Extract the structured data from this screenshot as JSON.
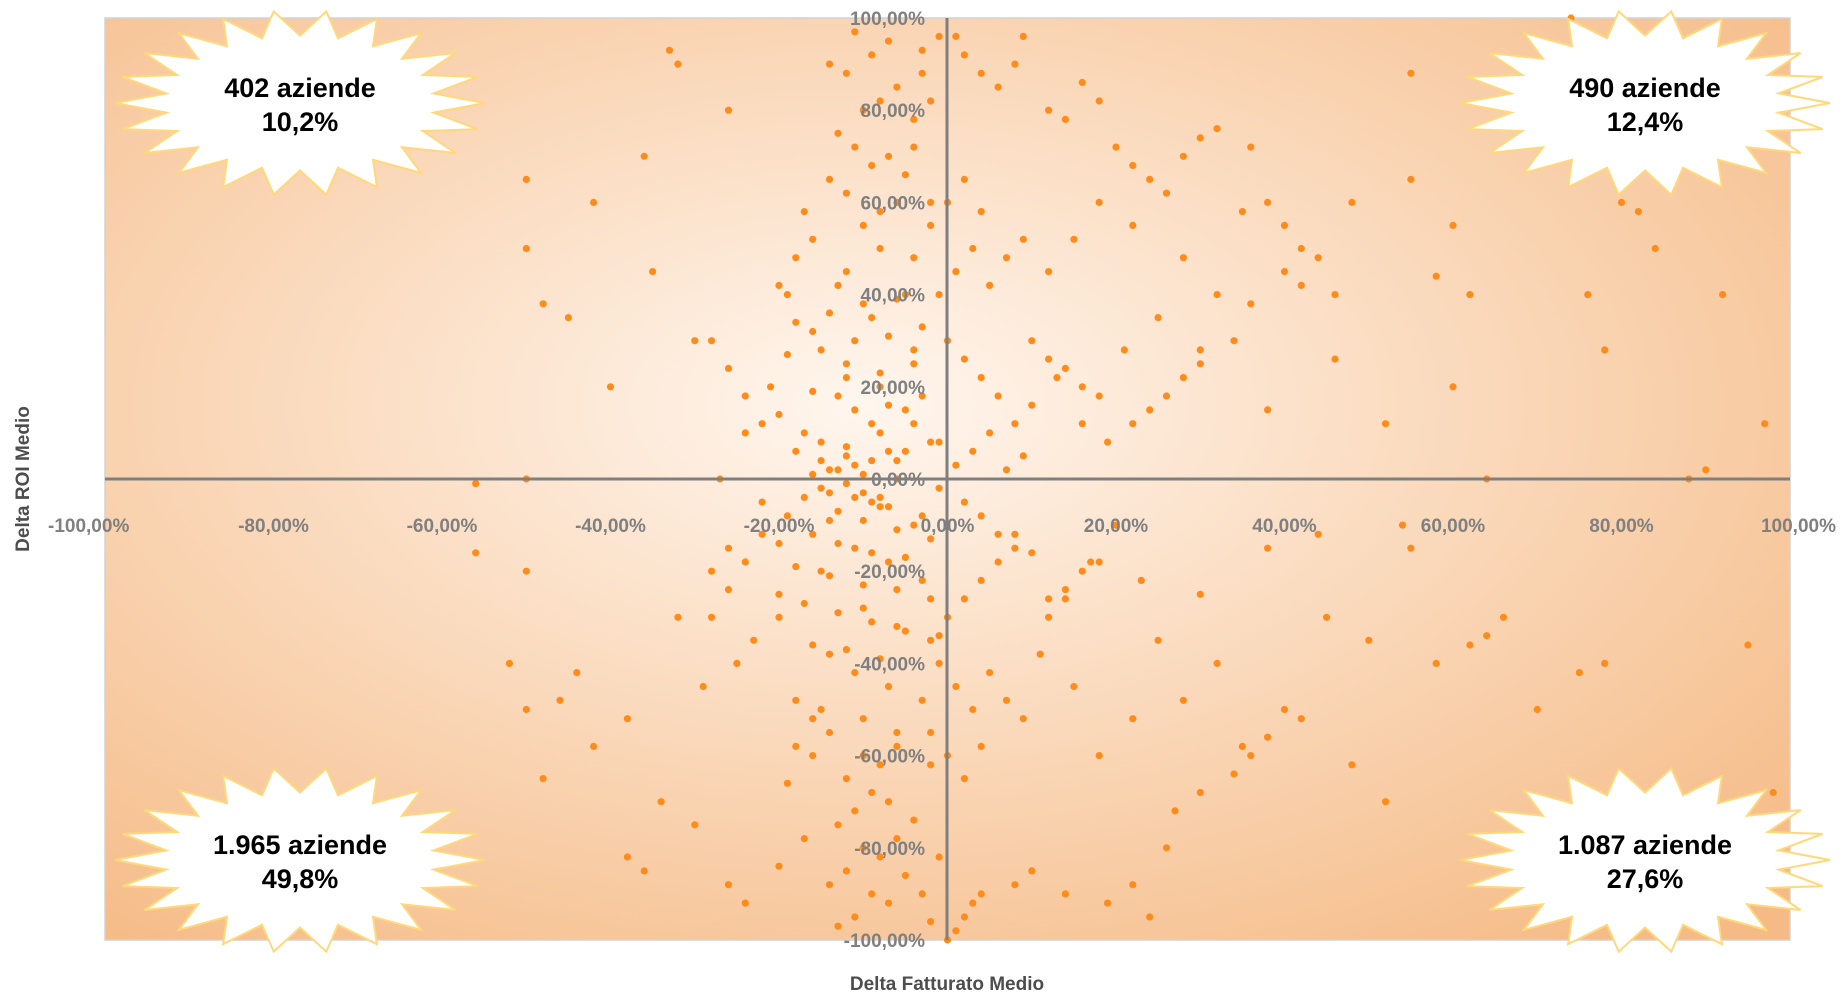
{
  "chart_data": {
    "type": "scatter",
    "xlabel": "Delta Fatturato Medio",
    "ylabel": "Delta ROI Medio",
    "xlim": [
      -100,
      100
    ],
    "ylim": [
      -100,
      100
    ],
    "x_ticks": [
      -100,
      -80,
      -60,
      -40,
      -20,
      0,
      20,
      40,
      60,
      80,
      100
    ],
    "y_ticks": [
      -100,
      -80,
      -60,
      -40,
      -20,
      0,
      20,
      40,
      60,
      80,
      100
    ],
    "x_tick_labels": [
      "-100,00%",
      "-80,00%",
      "-60,00%",
      "-40,00%",
      "-20,00%",
      "0,00%",
      "20,00%",
      "40,00%",
      "60,00%",
      "80,00%",
      "100,00%"
    ],
    "y_tick_labels": [
      "-100,00%",
      "-80,00%",
      "-60,00%",
      "-40,00%",
      "-20,00%",
      "0,00%",
      "20,00%",
      "40,00%",
      "60,00%",
      "80,00%",
      "100,00%"
    ],
    "grid": false,
    "legend": "none",
    "marker_color": "#ff8c1a",
    "points": [
      [
        -14,
        2
      ],
      [
        -12,
        5
      ],
      [
        -10,
        -3
      ],
      [
        -8,
        -6
      ],
      [
        -6,
        4
      ],
      [
        -4,
        -10
      ],
      [
        -2,
        8
      ],
      [
        -16,
        -12
      ],
      [
        -18,
        6
      ],
      [
        -11,
        -15
      ],
      [
        -9,
        12
      ],
      [
        -7,
        -18
      ],
      [
        -5,
        15
      ],
      [
        -3,
        -22
      ],
      [
        -13,
        18
      ],
      [
        -15,
        -20
      ],
      [
        -17,
        10
      ],
      [
        -19,
        -8
      ],
      [
        -20,
        -25
      ],
      [
        -12,
        25
      ],
      [
        -10,
        -28
      ],
      [
        -8,
        20
      ],
      [
        -6,
        -32
      ],
      [
        -4,
        28
      ],
      [
        -2,
        -35
      ],
      [
        -14,
        -38
      ],
      [
        -16,
        32
      ],
      [
        -11,
        -42
      ],
      [
        -9,
        35
      ],
      [
        -7,
        -45
      ],
      [
        -5,
        40
      ],
      [
        -3,
        -48
      ],
      [
        -13,
        42
      ],
      [
        -15,
        -50
      ],
      [
        -12,
        45
      ],
      [
        -10,
        -52
      ],
      [
        -8,
        50
      ],
      [
        -6,
        -55
      ],
      [
        -4,
        48
      ],
      [
        -18,
        -58
      ],
      [
        -20,
        -30
      ],
      [
        -22,
        -5
      ],
      [
        -24,
        10
      ],
      [
        -26,
        -15
      ],
      [
        -21,
        20
      ],
      [
        -23,
        -35
      ],
      [
        -25,
        -40
      ],
      [
        -27,
        0
      ],
      [
        -28,
        -20
      ],
      [
        -29,
        -45
      ],
      [
        -1,
        -2
      ],
      [
        1,
        3
      ],
      [
        2,
        -5
      ],
      [
        3,
        6
      ],
      [
        4,
        -8
      ],
      [
        5,
        10
      ],
      [
        6,
        -12
      ],
      [
        7,
        2
      ],
      [
        8,
        -15
      ],
      [
        9,
        5
      ],
      [
        -12,
        -1
      ],
      [
        -10,
        1
      ],
      [
        -8,
        -4
      ],
      [
        -6,
        0
      ],
      [
        -11,
        3
      ],
      [
        -9,
        -5
      ],
      [
        -7,
        6
      ],
      [
        -13,
        -7
      ],
      [
        -15,
        4
      ],
      [
        -14,
        -9
      ],
      [
        -10,
        -60
      ],
      [
        -8,
        -62
      ],
      [
        -6,
        -58
      ],
      [
        -12,
        -65
      ],
      [
        -14,
        -55
      ],
      [
        -16,
        -60
      ],
      [
        -9,
        -68
      ],
      [
        -7,
        -70
      ],
      [
        -11,
        -72
      ],
      [
        -13,
        -75
      ],
      [
        -10,
        -80
      ],
      [
        -8,
        -82
      ],
      [
        -6,
        -78
      ],
      [
        -12,
        -85
      ],
      [
        -14,
        -88
      ],
      [
        -9,
        -90
      ],
      [
        -7,
        -92
      ],
      [
        -11,
        -95
      ],
      [
        -13,
        -97
      ],
      [
        -5,
        -86
      ],
      [
        -10,
        55
      ],
      [
        -8,
        58
      ],
      [
        -6,
        60
      ],
      [
        -12,
        62
      ],
      [
        -14,
        65
      ],
      [
        -9,
        68
      ],
      [
        -7,
        70
      ],
      [
        -11,
        72
      ],
      [
        -13,
        75
      ],
      [
        -5,
        66
      ],
      [
        -10,
        80
      ],
      [
        -8,
        82
      ],
      [
        -6,
        85
      ],
      [
        -12,
        88
      ],
      [
        -14,
        90
      ],
      [
        -9,
        92
      ],
      [
        -7,
        95
      ],
      [
        -11,
        97
      ],
      [
        -4,
        78
      ],
      [
        -3,
        93
      ],
      [
        -2,
        60
      ],
      [
        -4,
        72
      ],
      [
        -16,
        52
      ],
      [
        -18,
        48
      ],
      [
        -19,
        40
      ],
      [
        -17,
        58
      ],
      [
        -20,
        42
      ],
      [
        -3,
        88
      ],
      [
        -2,
        82
      ],
      [
        -1,
        96
      ],
      [
        -2,
        -62
      ],
      [
        -4,
        -74
      ],
      [
        -16,
        -52
      ],
      [
        -18,
        -48
      ],
      [
        -19,
        -66
      ],
      [
        -17,
        -78
      ],
      [
        -20,
        -84
      ],
      [
        -3,
        -90
      ],
      [
        -2,
        -96
      ],
      [
        -1,
        -82
      ],
      [
        12,
        45
      ],
      [
        15,
        52
      ],
      [
        18,
        60
      ],
      [
        22,
        55
      ],
      [
        25,
        35
      ],
      [
        28,
        48
      ],
      [
        30,
        25
      ],
      [
        32,
        40
      ],
      [
        35,
        58
      ],
      [
        38,
        15
      ],
      [
        12,
        -30
      ],
      [
        15,
        -45
      ],
      [
        18,
        -60
      ],
      [
        22,
        -52
      ],
      [
        25,
        -35
      ],
      [
        28,
        -48
      ],
      [
        30,
        -25
      ],
      [
        32,
        -40
      ],
      [
        35,
        -58
      ],
      [
        38,
        -15
      ],
      [
        10,
        30
      ],
      [
        11,
        -38
      ],
      [
        13,
        22
      ],
      [
        14,
        -26
      ],
      [
        16,
        12
      ],
      [
        17,
        -18
      ],
      [
        19,
        8
      ],
      [
        20,
        -10
      ],
      [
        21,
        28
      ],
      [
        23,
        -22
      ],
      [
        -30,
        30
      ],
      [
        -32,
        -30
      ],
      [
        -35,
        45
      ],
      [
        -38,
        -52
      ],
      [
        -40,
        20
      ],
      [
        -42,
        -58
      ],
      [
        -45,
        35
      ],
      [
        -48,
        -65
      ],
      [
        -50,
        50
      ],
      [
        -52,
        -40
      ],
      [
        -50,
        0
      ],
      [
        -50,
        -50
      ],
      [
        -50,
        65
      ],
      [
        -50,
        -20
      ],
      [
        -56,
        -16
      ],
      [
        -56,
        -1
      ],
      [
        -48,
        38
      ],
      [
        -42,
        60
      ],
      [
        -36,
        70
      ],
      [
        -30,
        -75
      ],
      [
        -32,
        90
      ],
      [
        -33,
        93
      ],
      [
        -34,
        -70
      ],
      [
        -36,
        -85
      ],
      [
        -38,
        -82
      ],
      [
        -44,
        -42
      ],
      [
        -46,
        -48
      ],
      [
        -26,
        80
      ],
      [
        -26,
        -88
      ],
      [
        -24,
        -92
      ],
      [
        40,
        45
      ],
      [
        42,
        50
      ],
      [
        45,
        -30
      ],
      [
        48,
        60
      ],
      [
        50,
        -35
      ],
      [
        52,
        12
      ],
      [
        55,
        88
      ],
      [
        55,
        65
      ],
      [
        55,
        -15
      ],
      [
        58,
        -40
      ],
      [
        60,
        55
      ],
      [
        62,
        40
      ],
      [
        62,
        -36
      ],
      [
        64,
        0
      ],
      [
        66,
        -30
      ],
      [
        70,
        -50
      ],
      [
        72,
        -75
      ],
      [
        75,
        -42
      ],
      [
        78,
        -40
      ],
      [
        80,
        60
      ],
      [
        82,
        58
      ],
      [
        84,
        50
      ],
      [
        86,
        65
      ],
      [
        88,
        0
      ],
      [
        90,
        2
      ],
      [
        92,
        40
      ],
      [
        95,
        -36
      ],
      [
        97,
        12
      ],
      [
        98,
        -68
      ],
      [
        74,
        100
      ],
      [
        76,
        40
      ],
      [
        78,
        28
      ],
      [
        80,
        -65
      ],
      [
        64,
        -34
      ],
      [
        54,
        -10
      ],
      [
        58,
        44
      ],
      [
        60,
        20
      ],
      [
        46,
        26
      ],
      [
        44,
        -12
      ],
      [
        40,
        -50
      ],
      [
        0,
        -100
      ],
      [
        1,
        -98
      ],
      [
        2,
        -95
      ],
      [
        3,
        -92
      ],
      [
        4,
        -90
      ],
      [
        8,
        -88
      ],
      [
        10,
        -85
      ],
      [
        14,
        -90
      ],
      [
        19,
        -92
      ],
      [
        22,
        -88
      ],
      [
        24,
        -95
      ],
      [
        26,
        -80
      ],
      [
        27,
        -72
      ],
      [
        30,
        -68
      ],
      [
        34,
        -64
      ],
      [
        36,
        -60
      ],
      [
        38,
        -56
      ],
      [
        42,
        -52
      ],
      [
        48,
        -62
      ],
      [
        52,
        -70
      ],
      [
        1,
        96
      ],
      [
        2,
        92
      ],
      [
        4,
        88
      ],
      [
        6,
        85
      ],
      [
        8,
        90
      ],
      [
        9,
        96
      ],
      [
        12,
        80
      ],
      [
        14,
        78
      ],
      [
        16,
        86
      ],
      [
        18,
        82
      ],
      [
        20,
        72
      ],
      [
        22,
        68
      ],
      [
        24,
        65
      ],
      [
        26,
        62
      ],
      [
        28,
        70
      ],
      [
        30,
        74
      ],
      [
        32,
        76
      ],
      [
        36,
        72
      ],
      [
        38,
        60
      ],
      [
        40,
        55
      ],
      [
        44,
        48
      ],
      [
        46,
        40
      ],
      [
        42,
        42
      ],
      [
        36,
        38
      ],
      [
        34,
        30
      ],
      [
        30,
        28
      ],
      [
        28,
        22
      ],
      [
        26,
        18
      ],
      [
        24,
        15
      ],
      [
        22,
        12
      ],
      [
        18,
        18
      ],
      [
        16,
        20
      ],
      [
        14,
        24
      ],
      [
        12,
        26
      ],
      [
        10,
        16
      ],
      [
        8,
        12
      ],
      [
        6,
        18
      ],
      [
        4,
        22
      ],
      [
        2,
        26
      ],
      [
        0,
        30
      ],
      [
        18,
        -18
      ],
      [
        16,
        -20
      ],
      [
        14,
        -24
      ],
      [
        12,
        -26
      ],
      [
        10,
        -16
      ],
      [
        8,
        -12
      ],
      [
        6,
        -18
      ],
      [
        4,
        -22
      ],
      [
        2,
        -26
      ],
      [
        0,
        -30
      ],
      [
        -1,
        -40
      ],
      [
        1,
        -45
      ],
      [
        3,
        -50
      ],
      [
        5,
        -42
      ],
      [
        7,
        -48
      ],
      [
        9,
        -52
      ],
      [
        -2,
        -55
      ],
      [
        0,
        -60
      ],
      [
        2,
        -65
      ],
      [
        4,
        -58
      ],
      [
        -1,
        40
      ],
      [
        1,
        45
      ],
      [
        3,
        50
      ],
      [
        5,
        42
      ],
      [
        7,
        48
      ],
      [
        9,
        52
      ],
      [
        -2,
        55
      ],
      [
        0,
        60
      ],
      [
        2,
        65
      ],
      [
        4,
        58
      ],
      [
        -22,
        -12
      ],
      [
        -24,
        -18
      ],
      [
        -26,
        -24
      ],
      [
        -28,
        -30
      ],
      [
        -22,
        12
      ],
      [
        -24,
        18
      ],
      [
        -26,
        24
      ],
      [
        -28,
        30
      ],
      [
        -20,
        14
      ],
      [
        -20,
        -14
      ],
      [
        -15,
        -2
      ],
      [
        -13,
        2
      ],
      [
        -11,
        -4
      ],
      [
        -9,
        4
      ],
      [
        -7,
        -6
      ],
      [
        -5,
        6
      ],
      [
        -3,
        -8
      ],
      [
        -1,
        8
      ],
      [
        -16,
        1
      ],
      [
        -14,
        -3
      ],
      [
        -12,
        7
      ],
      [
        -10,
        -9
      ],
      [
        -8,
        10
      ],
      [
        -6,
        -11
      ],
      [
        -4,
        12
      ],
      [
        -2,
        -13
      ],
      [
        -17,
        -4
      ],
      [
        -15,
        8
      ],
      [
        -13,
        -14
      ],
      [
        -11,
        15
      ],
      [
        -9,
        -16
      ],
      [
        -7,
        16
      ],
      [
        -5,
        -17
      ],
      [
        -3,
        18
      ],
      [
        -18,
        -19
      ],
      [
        -16,
        19
      ],
      [
        -14,
        -21
      ],
      [
        -12,
        22
      ],
      [
        -10,
        -23
      ],
      [
        -8,
        23
      ],
      [
        -6,
        -24
      ],
      [
        -4,
        25
      ],
      [
        -2,
        -26
      ],
      [
        -19,
        27
      ],
      [
        -17,
        -27
      ],
      [
        -15,
        28
      ],
      [
        -13,
        -29
      ],
      [
        -11,
        30
      ],
      [
        -9,
        -31
      ],
      [
        -7,
        31
      ],
      [
        -5,
        -33
      ],
      [
        -3,
        33
      ],
      [
        -1,
        -34
      ],
      [
        -18,
        34
      ],
      [
        -16,
        -36
      ],
      [
        -14,
        36
      ],
      [
        -12,
        -37
      ],
      [
        -10,
        38
      ],
      [
        -8,
        -39
      ],
      [
        -6,
        39
      ]
    ],
    "annotations": [
      {
        "quadrant": "top-left",
        "line1": "402 aziende",
        "line2": "10,2%"
      },
      {
        "quadrant": "top-right",
        "line1": "490 aziende",
        "line2": "12,4%"
      },
      {
        "quadrant": "bottom-left",
        "line1": "1.965 aziende",
        "line2": "49,8%"
      },
      {
        "quadrant": "bottom-right",
        "line1": "1.087 aziende",
        "line2": "27,6%"
      }
    ]
  },
  "colors": {
    "plot_edge": "#f5ba85",
    "plot_center": "#fff6ee",
    "axis_line": "#7f7f7f",
    "burst_fill": "#ffffff",
    "burst_stroke": "#ffd87a"
  }
}
